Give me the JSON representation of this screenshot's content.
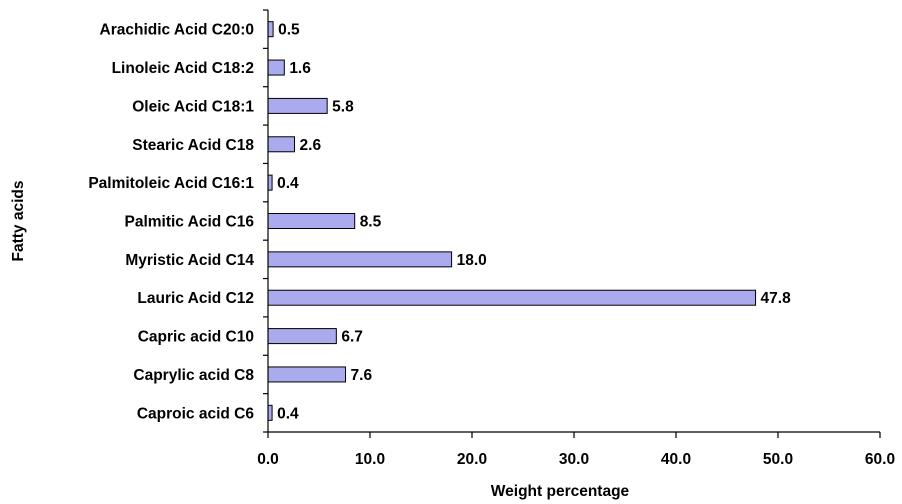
{
  "chart_data": {
    "type": "bar",
    "orientation": "horizontal",
    "categories": [
      "Caproic acid C6",
      "Caprylic acid C8",
      "Capric  acid C10",
      "Lauric Acid C12",
      "Myristic Acid C14",
      "Palmitic Acid C16",
      "Palmitoleic Acid C16:1",
      "Stearic Acid C18",
      "Oleic Acid C18:1",
      "Linoleic Acid C18:2",
      "Arachidic Acid C20:0"
    ],
    "values": [
      0.4,
      7.6,
      6.7,
      47.8,
      18.0,
      8.5,
      0.4,
      2.6,
      5.8,
      1.6,
      0.5
    ],
    "value_labels": [
      "0.4",
      "7.6",
      "6.7",
      "47.8",
      "18.0",
      "8.5",
      "0.4",
      "2.6",
      "5.8",
      "1.6",
      "0.5"
    ],
    "xlabel": "Weight percentage",
    "ylabel": "Fatty acids",
    "xlim": [
      0,
      60
    ],
    "xticks": [
      "0.0",
      "10.0",
      "20.0",
      "30.0",
      "40.0",
      "50.0",
      "60.0"
    ],
    "grid": false,
    "legend": "none",
    "bar_color": "#aaaaee"
  }
}
